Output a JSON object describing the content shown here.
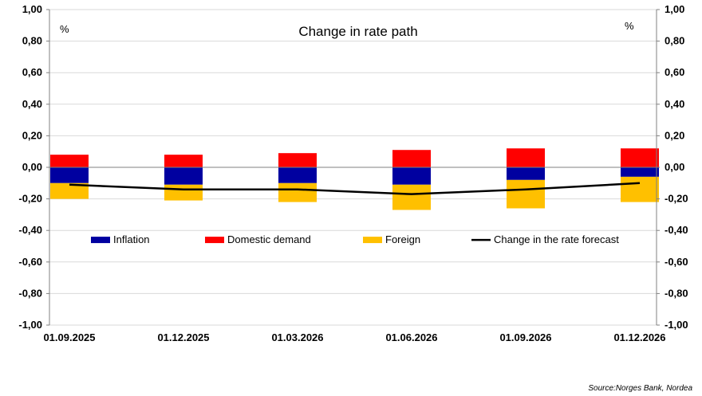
{
  "chart_data": {
    "type": "bar",
    "stacked": true,
    "title": "Change in rate path",
    "y_unit_left": "%",
    "y_unit_right": "%",
    "categories": [
      "01.09.2025",
      "01.12.2025",
      "01.03.2026",
      "01.06.2026",
      "01.09.2026",
      "01.12.2026"
    ],
    "ylim": [
      -1.0,
      1.0
    ],
    "yticks": [
      "1,00",
      "0,80",
      "0,60",
      "0,40",
      "0,20",
      "0,00",
      "-0,20",
      "-0,40",
      "-0,60",
      "-0,80",
      "-1,00"
    ],
    "series": [
      {
        "name": "Inflation",
        "kind": "bar",
        "color": "#0000a0",
        "values": [
          -0.1,
          -0.11,
          -0.1,
          -0.11,
          -0.08,
          -0.06
        ]
      },
      {
        "name": "Domestic demand",
        "kind": "bar",
        "color": "#ff0000",
        "values": [
          0.08,
          0.08,
          0.09,
          0.11,
          0.12,
          0.12
        ]
      },
      {
        "name": "Foreign",
        "kind": "bar",
        "color": "#ffc000",
        "values": [
          -0.1,
          -0.1,
          -0.12,
          -0.16,
          -0.18,
          -0.16
        ]
      },
      {
        "name": "Change in the rate forecast",
        "kind": "line",
        "color": "#000000",
        "values": [
          -0.11,
          -0.14,
          -0.14,
          -0.17,
          -0.14,
          -0.1
        ]
      }
    ],
    "grid": "horizontal",
    "legend": "inside-lower"
  },
  "source": "Source:Norges Bank, Nordea"
}
